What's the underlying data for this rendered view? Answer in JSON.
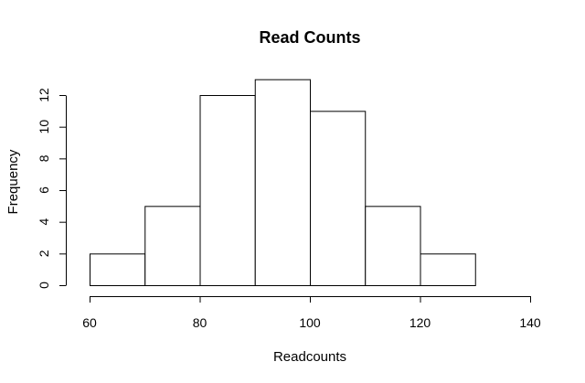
{
  "chart_data": {
    "type": "bar",
    "title": "Read Counts",
    "xlabel": "Readcounts",
    "ylabel": "Frequency",
    "bins": [
      {
        "start": 60,
        "end": 70,
        "count": 2
      },
      {
        "start": 70,
        "end": 80,
        "count": 5
      },
      {
        "start": 80,
        "end": 90,
        "count": 12
      },
      {
        "start": 90,
        "end": 100,
        "count": 13
      },
      {
        "start": 100,
        "end": 110,
        "count": 11
      },
      {
        "start": 110,
        "end": 120,
        "count": 5
      },
      {
        "start": 120,
        "end": 130,
        "count": 2
      },
      {
        "start": 130,
        "end": 140,
        "count": 0
      }
    ],
    "xlim": [
      60,
      140
    ],
    "xticks": [
      "60",
      "80",
      "100",
      "120",
      "140"
    ],
    "ylim": [
      0,
      12
    ],
    "yticks": [
      "0",
      "2",
      "4",
      "6",
      "8",
      "10",
      "12"
    ],
    "grid": false,
    "colors": {
      "bar_fill": "#ffffff",
      "bar_stroke": "#000000"
    }
  }
}
